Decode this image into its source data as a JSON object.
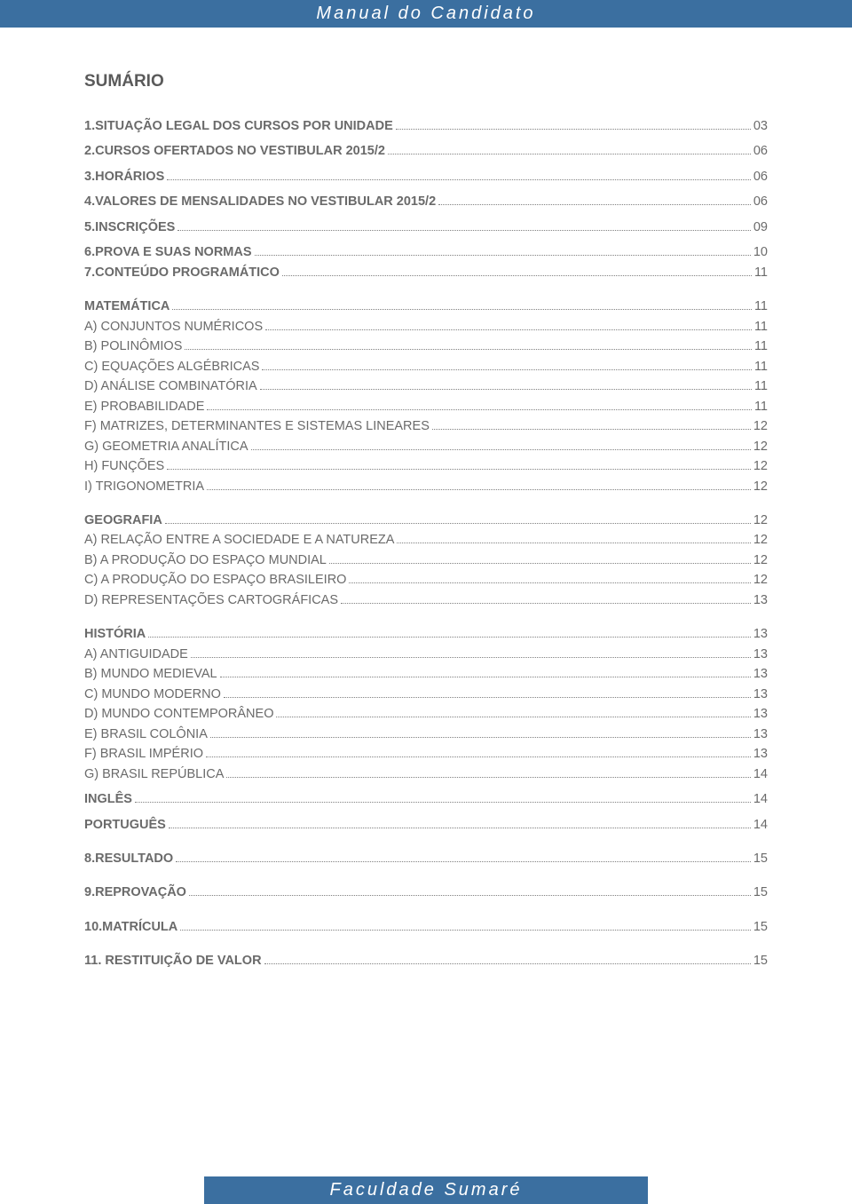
{
  "header_title": "Manual do Candidato",
  "footer_title": "Faculdade Sumaré",
  "sumario_heading": "SUMÁRIO",
  "colors": {
    "bar_bg": "#3b6fa0",
    "bar_text": "#ffffff",
    "body_text": "#6a6a6a",
    "heading_text": "#5a5a5a",
    "dots": "#808080",
    "page_bg": "#ffffff"
  },
  "typography": {
    "body_fontsize": 14.5,
    "heading_fontsize": 19,
    "bar_fontsize": 20,
    "bar_letter_spacing": 3,
    "line_height": 1.55
  },
  "toc": [
    {
      "label": "1.SITUAÇÃO LEGAL DOS CURSOS POR UNIDADE",
      "page": "03",
      "bold": true,
      "gap_after": "sm"
    },
    {
      "label": "2.CURSOS OFERTADOS NO VESTIBULAR 2015/2",
      "page": "06",
      "bold": true,
      "gap_after": "sm"
    },
    {
      "label": "3.HORÁRIOS",
      "page": "06",
      "bold": true,
      "gap_after": "sm"
    },
    {
      "label": "4.VALORES DE MENSALIDADES NO VESTIBULAR 2015/2",
      "page": "06",
      "bold": true,
      "gap_after": "sm"
    },
    {
      "label": "5.INSCRIÇÕES",
      "page": "09",
      "bold": true,
      "gap_after": "sm"
    },
    {
      "label": "6.PROVA E SUAS NORMAS",
      "page": "10",
      "bold": true
    },
    {
      "label": "7.CONTEÚDO PROGRAMÁTICO",
      "page": "11",
      "bold": true,
      "gap_after": "md"
    },
    {
      "label": "MATEMÁTICA",
      "page": "11",
      "bold": true
    },
    {
      "label": "A) CONJUNTOS NUMÉRICOS",
      "page": "11"
    },
    {
      "label": "B) POLINÔMIOS",
      "page": "11"
    },
    {
      "label": "C) EQUAÇÕES ALGÉBRICAS",
      "page": "11"
    },
    {
      "label": "D) ANÁLISE COMBINATÓRIA",
      "page": "11"
    },
    {
      "label": "E) PROBABILIDADE",
      "page": "11"
    },
    {
      "label": "F) MATRIZES, DETERMINANTES E SISTEMAS LINEARES",
      "page": "12"
    },
    {
      "label": "G) GEOMETRIA ANALÍTICA",
      "page": "12"
    },
    {
      "label": "H) FUNÇÕES",
      "page": "12"
    },
    {
      "label": "I) TRIGONOMETRIA",
      "page": "12",
      "gap_after": "md"
    },
    {
      "label": "GEOGRAFIA",
      "page": "12",
      "bold": true
    },
    {
      "label": "A) RELAÇÃO ENTRE A SOCIEDADE E A NATUREZA",
      "page": "12"
    },
    {
      "label": "B) A PRODUÇÃO DO ESPAÇO MUNDIAL",
      "page": "12"
    },
    {
      "label": "C) A PRODUÇÃO DO ESPAÇO BRASILEIRO",
      "page": "12"
    },
    {
      "label": "D) REPRESENTAÇÕES CARTOGRÁFICAS",
      "page": "13",
      "gap_after": "md"
    },
    {
      "label": "HISTÓRIA",
      "page": "13",
      "bold": true
    },
    {
      "label": "A) ANTIGUIDADE",
      "page": "13"
    },
    {
      "label": "B) MUNDO MEDIEVAL",
      "page": "13"
    },
    {
      "label": "C) MUNDO MODERNO",
      "page": "13"
    },
    {
      "label": "D) MUNDO CONTEMPORÂNEO",
      "page": "13"
    },
    {
      "label": "E)  BRASIL COLÔNIA",
      "page": "13"
    },
    {
      "label": "F) BRASIL IMPÉRIO",
      "page": "13"
    },
    {
      "label": "G) BRASIL REPÚBLICA",
      "page": "14",
      "gap_after": "sm"
    },
    {
      "label": "INGLÊS",
      "page": "14",
      "bold": true,
      "gap_after": "sm"
    },
    {
      "label": "PORTUGUÊS",
      "page": "14",
      "bold": true,
      "gap_after": "md"
    },
    {
      "label": "8.RESULTADO",
      "page": "15",
      "bold": true,
      "gap_after": "md"
    },
    {
      "label": "9.REPROVAÇÃO",
      "page": "15",
      "bold": true,
      "gap_after": "md"
    },
    {
      "label": "10.MATRÍCULA",
      "page": "15",
      "bold": true,
      "gap_after": "md"
    },
    {
      "label": "11. RESTITUIÇÃO DE VALOR",
      "page": "15",
      "bold": true
    }
  ]
}
